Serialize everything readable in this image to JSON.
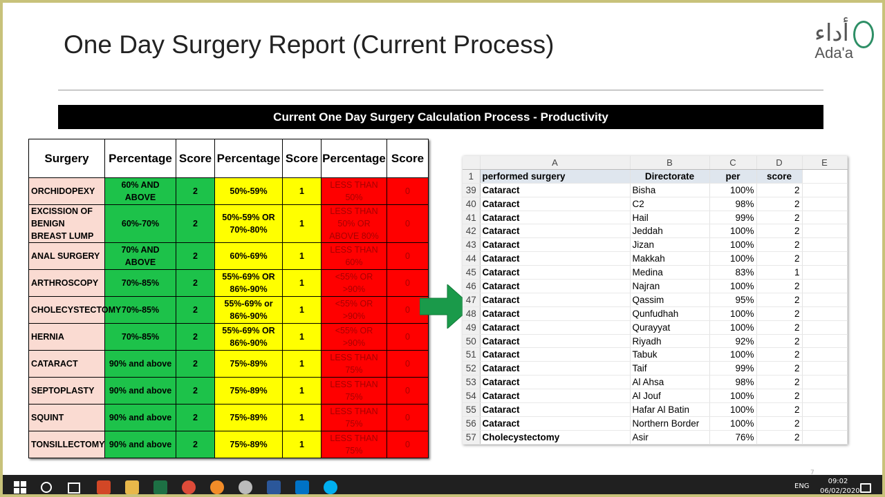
{
  "slide": {
    "title": "One Day Surgery Report (Current Process)",
    "logo_arabic": "أداء",
    "logo_latin": "Ada'a",
    "banner": "Current One Day Surgery Calculation Process - Productivity",
    "slide_number": "7"
  },
  "left_table": {
    "header": [
      "Surgery",
      "Percentage",
      "Score",
      "Percentage",
      "Score",
      "Percentage",
      "Score"
    ],
    "rows": [
      [
        "ORCHIDOPEXY",
        "60% AND ABOVE",
        2,
        "50%-59%",
        1,
        "LESS THAN 50%",
        0
      ],
      [
        "EXCISSION OF BENIGN BREAST LUMP",
        "60%-70%",
        2,
        "50%-59% OR 70%-80%",
        1,
        "LESS THAN 50% OR ABOVE 80%",
        0
      ],
      [
        "ANAL SURGERY",
        "70% AND ABOVE",
        2,
        "60%-69%",
        1,
        "LESS THAN 60%",
        0
      ],
      [
        "ARTHROSCOPY",
        "70%-85%",
        2,
        "55%-69% OR 86%-90%",
        1,
        "<55% OR >90%",
        0
      ],
      [
        "CHOLECYSTECTOMY",
        "70%-85%",
        2,
        "55%-69% or 86%-90%",
        1,
        "<55% OR >90%",
        0
      ],
      [
        "HERNIA",
        "70%-85%",
        2,
        "55%-69% OR 86%-90%",
        1,
        "<55% OR >90%",
        0
      ],
      [
        "CATARACT",
        "90% and above",
        2,
        "75%-89%",
        1,
        "LESS THAN 75%",
        0
      ],
      [
        "SEPTOPLASTY",
        "90% and above",
        2,
        "75%-89%",
        1,
        "LESS THAN 75%",
        0
      ],
      [
        "SQUINT",
        "90% and above",
        2,
        "75%-89%",
        1,
        "LESS THAN 75%",
        0
      ],
      [
        "TONSILLECTOMY",
        "90% and above",
        2,
        "75%-89%",
        1,
        "LESS THAN 75%",
        0
      ]
    ]
  },
  "spreadsheet": {
    "column_letters": [
      "A",
      "B",
      "C",
      "D",
      "E"
    ],
    "header_row_number": 1,
    "header": [
      "performed surgery",
      "Directorate",
      "per",
      "score"
    ],
    "rows": [
      [
        39,
        "Cataract",
        "Bisha",
        "100%",
        2
      ],
      [
        40,
        "Cataract",
        "C2",
        "98%",
        2
      ],
      [
        41,
        "Cataract",
        "Hail",
        "99%",
        2
      ],
      [
        42,
        "Cataract",
        "Jeddah",
        "100%",
        2
      ],
      [
        43,
        "Cataract",
        "Jizan",
        "100%",
        2
      ],
      [
        44,
        "Cataract",
        "Makkah",
        "100%",
        2
      ],
      [
        45,
        "Cataract",
        "Medina",
        "83%",
        1
      ],
      [
        46,
        "Cataract",
        "Najran",
        "100%",
        2
      ],
      [
        47,
        "Cataract",
        "Qassim",
        "95%",
        2
      ],
      [
        48,
        "Cataract",
        "Qunfudhah",
        "100%",
        2
      ],
      [
        49,
        "Cataract",
        "Qurayyat",
        "100%",
        2
      ],
      [
        50,
        "Cataract",
        "Riyadh",
        "92%",
        2
      ],
      [
        51,
        "Cataract",
        "Tabuk",
        "100%",
        2
      ],
      [
        52,
        "Cataract",
        "Taif",
        "99%",
        2
      ],
      [
        53,
        "Cataract",
        "Al Ahsa",
        "98%",
        2
      ],
      [
        54,
        "Cataract",
        "Al Jouf",
        "100%",
        2
      ],
      [
        55,
        "Cataract",
        "Hafar Al Batin",
        "100%",
        2
      ],
      [
        56,
        "Cataract",
        "Northern Border",
        "100%",
        2
      ],
      [
        57,
        "Cholecystectomy",
        "Asir",
        "76%",
        2
      ]
    ]
  },
  "taskbar": {
    "language": "ENG",
    "time": "09:02",
    "date": "06/02/2020"
  }
}
